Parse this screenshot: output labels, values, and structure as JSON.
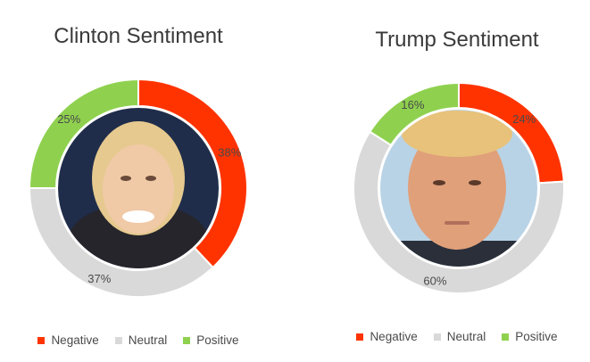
{
  "chart_data": [
    {
      "type": "pie",
      "title": "Clinton Sentiment",
      "categories": [
        "Negative",
        "Neutral",
        "Positive"
      ],
      "values": [
        38,
        37,
        25
      ],
      "labels": [
        "38%",
        "37%",
        "25%"
      ],
      "colors": [
        "#ff3300",
        "#d9d9d9",
        "#8fd14f"
      ],
      "legend": "bottom",
      "photo": "Hillary Clinton portrait"
    },
    {
      "type": "pie",
      "title": "Trump Sentiment",
      "categories": [
        "Negative",
        "Neutral",
        "Positive"
      ],
      "values": [
        24,
        60,
        16
      ],
      "labels": [
        "24%",
        "60%",
        "16%"
      ],
      "colors": [
        "#ff3300",
        "#d9d9d9",
        "#8fd14f"
      ],
      "legend": "bottom",
      "photo": "Donald Trump portrait"
    }
  ]
}
